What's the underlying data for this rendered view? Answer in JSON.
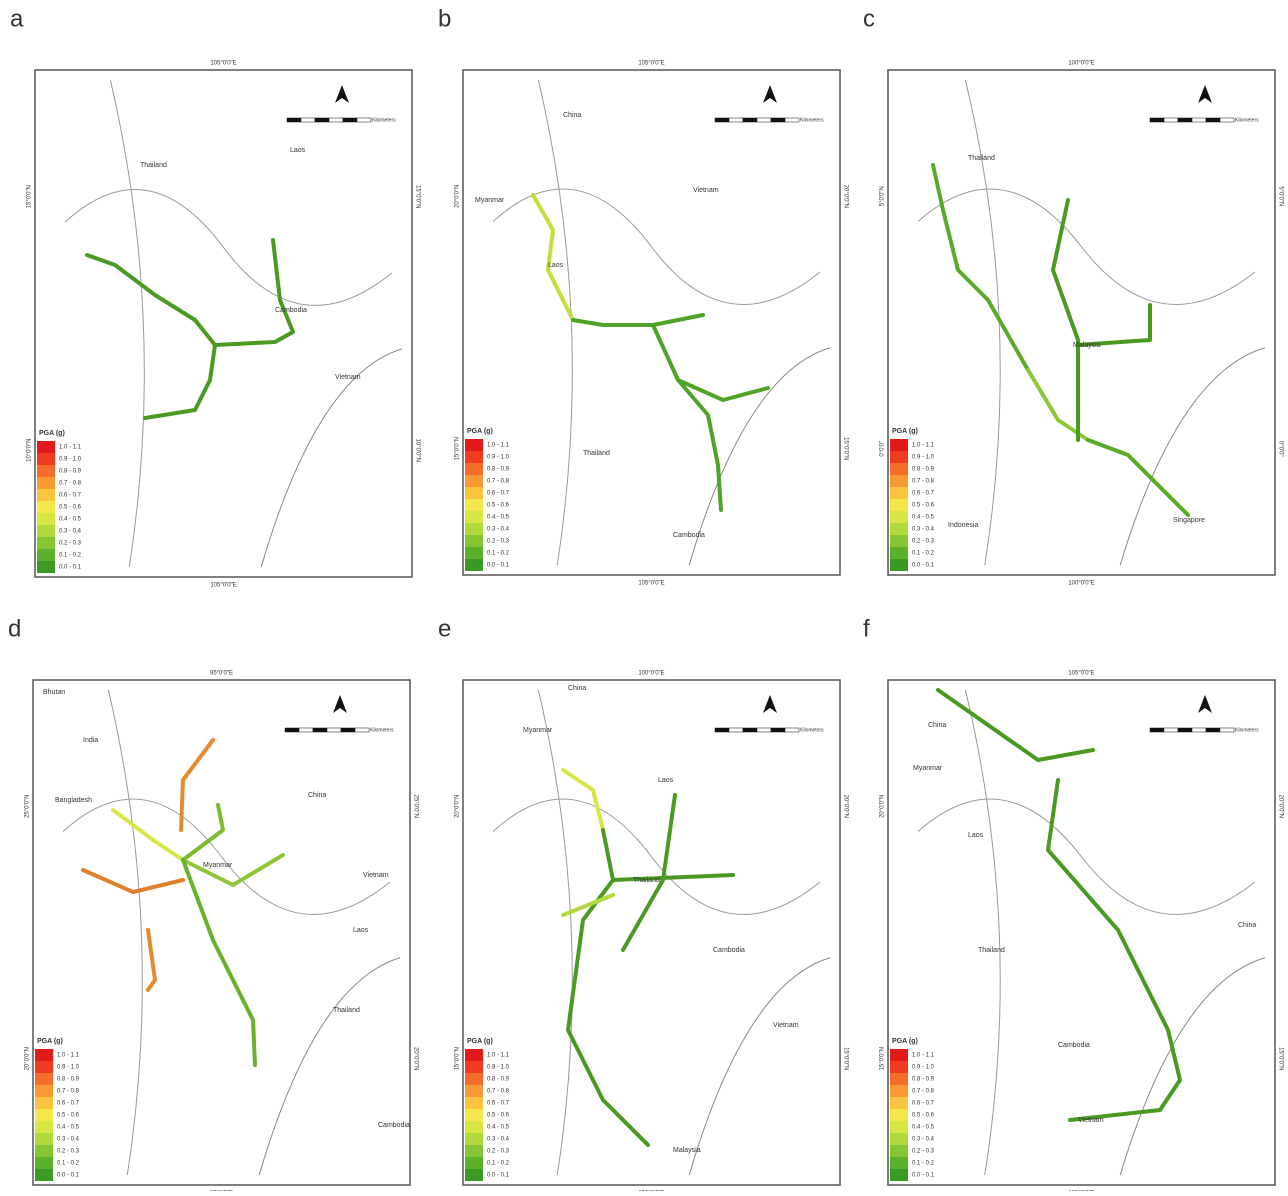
{
  "legend": {
    "title": "PGA (g)",
    "classes": [
      "1.0 - 1.1",
      "0.9 - 1.0",
      "0.8 - 0.9",
      "0.7 - 0.8",
      "0.6 - 0.7",
      "0.5 - 0.6",
      "0.4 - 0.5",
      "0.3 - 0.4",
      "0.2 - 0.3",
      "0.1 - 0.2",
      "0.0 - 0.1"
    ],
    "colors": [
      "#e31a1c",
      "#f03b20",
      "#f46d2a",
      "#f89a33",
      "#fbc43e",
      "#f5e64a",
      "#d8e645",
      "#b2d93c",
      "#86c633",
      "#5cb12b",
      "#3a9a24"
    ]
  },
  "scale_unit": "Kilometers",
  "panels": [
    {
      "letter": "a",
      "labels": [
        "Thailand",
        "Laos",
        "Cambodia",
        "Vietnam"
      ],
      "lon": "105°0'0\"E",
      "lat": [
        "15°0'0\"N",
        "10°0'0\"N"
      ]
    },
    {
      "letter": "b",
      "labels": [
        "China",
        "Myanmar",
        "Vietnam",
        "Laos",
        "Thailand",
        "Cambodia"
      ],
      "lon": "105°0'0\"E",
      "lat": [
        "20°0'0\"N",
        "15°0'0\"N"
      ]
    },
    {
      "letter": "c",
      "labels": [
        "Thailand",
        "Malaysia",
        "Indonesia",
        "Singapore"
      ],
      "lon": "100°0'0\"E",
      "lat": [
        "5°0'0\"N",
        "0°0'0\""
      ]
    },
    {
      "letter": "d",
      "labels": [
        "Bhutan",
        "India",
        "Bangladesh",
        "China",
        "Myanmar",
        "Vietnam",
        "Laos",
        "Thailand",
        "Cambodia"
      ],
      "lon": "95°0'0\"E",
      "lat": [
        "25°0'0\"N",
        "20°0'0\"N"
      ]
    },
    {
      "letter": "e",
      "labels": [
        "China",
        "Myanmar",
        "Laos",
        "Thailand",
        "Cambodia",
        "Vietnam",
        "Malaysia"
      ],
      "lon": "100°0'0\"E",
      "lat": [
        "20°0'0\"N",
        "15°0'0\"N"
      ]
    },
    {
      "letter": "f",
      "labels": [
        "China",
        "Myanmar",
        "Laos",
        "Thailand",
        "Cambodia",
        "Vietnam",
        "China"
      ],
      "lon": "105°0'0\"E",
      "lat": [
        "20°0'0\"N",
        "15°0'0\"N"
      ]
    }
  ]
}
